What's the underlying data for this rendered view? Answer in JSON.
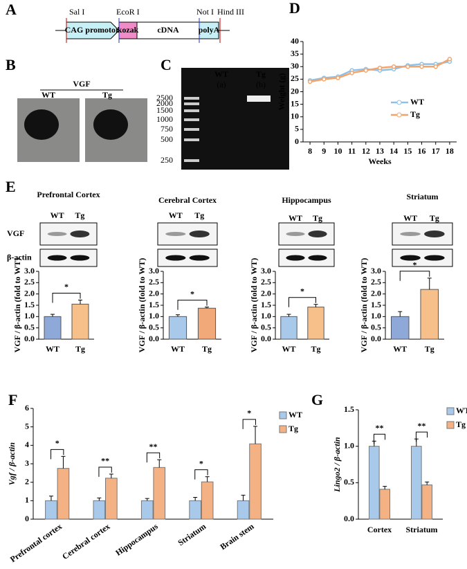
{
  "panel_labels": [
    "A",
    "B",
    "C",
    "D",
    "E",
    "F",
    "G"
  ],
  "construct": {
    "sites": [
      "Sal I",
      "EcoR I",
      "Not I",
      "Hind III"
    ],
    "elements": [
      "CAG promotor",
      "kozak",
      "cDNA",
      "polyA"
    ]
  },
  "photos": {
    "title": "VGF",
    "labels": [
      "WT",
      "Tg"
    ]
  },
  "gel": {
    "lanes": [
      "WT",
      "Tg"
    ],
    "lane_ids": [
      "(a)",
      "(b)"
    ],
    "ladder": [
      2500,
      2000,
      1500,
      1000,
      750,
      500,
      250
    ]
  },
  "chart_data": [
    {
      "type": "line",
      "xlabel": "Weeks",
      "ylabel": "Weight (g)",
      "x": [
        8,
        9,
        10,
        11,
        12,
        13,
        14,
        15,
        16,
        17,
        18
      ],
      "xlim": [
        7.5,
        18.5
      ],
      "xticks": [
        8,
        9,
        10,
        11,
        12,
        13,
        14,
        15,
        16,
        17,
        18
      ],
      "ylim": [
        0,
        40
      ],
      "yticks": [
        0,
        5,
        10,
        15,
        20,
        25,
        30,
        35,
        40
      ],
      "legend": "right",
      "series": [
        {
          "name": "WT",
          "color": "#8fc1e6",
          "values": [
            24.5,
            25.5,
            26,
            28.5,
            29,
            28.5,
            29,
            30.5,
            31,
            31,
            32
          ]
        },
        {
          "name": "Tg",
          "color": "#f4a46a",
          "values": [
            24,
            25,
            25.5,
            27.5,
            28.5,
            29.5,
            30,
            30,
            30,
            30,
            33
          ]
        }
      ]
    },
    {
      "type": "bar",
      "title": "Prefrontal Cortex",
      "lanes": [
        "WT",
        "Tg"
      ],
      "blot_rows": [
        "VGF",
        "β-actin"
      ],
      "ylabel": "VGF / β-actin (fold to WT)",
      "categories": [
        "WT",
        "Tg"
      ],
      "values": [
        1,
        1.55
      ],
      "errors": [
        0.1,
        0.18
      ],
      "colors": [
        "#8ea9d8",
        "#f7c08a"
      ],
      "significance": "*",
      "ylim": [
        0,
        3
      ],
      "yticks": [
        {
          "value": 0,
          "label": "0.0"
        },
        0.5,
        {
          "value": 1,
          "label": "1.0"
        },
        1.5,
        {
          "value": 2,
          "label": "2.0"
        },
        2.5,
        {
          "value": 3,
          "label": "3.0"
        }
      ]
    },
    {
      "type": "bar",
      "title": "Cerebral Cortex",
      "lanes": [
        "WT",
        "Tg"
      ],
      "ylabel": "VGF / β-actin (fold to WT)",
      "categories": [
        "WT",
        "Tg"
      ],
      "values": [
        1,
        1.37
      ],
      "errors": [
        0.08,
        0.05
      ],
      "colors": [
        "#a9c9ea",
        "#f2a97a"
      ],
      "significance": "*",
      "ylim": [
        0,
        3
      ],
      "yticks": [
        {
          "value": 0,
          "label": "0.0"
        },
        0.5,
        {
          "value": 1,
          "label": "1.0"
        },
        1.5,
        {
          "value": 2,
          "label": "2.0"
        },
        2.5,
        {
          "value": 3,
          "label": "3.0"
        }
      ]
    },
    {
      "type": "bar",
      "title": "Hippocampus",
      "lanes": [
        "WT",
        "Tg"
      ],
      "ylabel": "VGF / β-actin (fold to WT)",
      "categories": [
        "WT",
        "Tg"
      ],
      "values": [
        1,
        1.42
      ],
      "errors": [
        0.1,
        0.12
      ],
      "colors": [
        "#a9c9ea",
        "#f7c08a"
      ],
      "significance": "*",
      "ylim": [
        0,
        3
      ],
      "yticks": [
        {
          "value": 0,
          "label": "0.0"
        },
        0.5,
        {
          "value": 1,
          "label": "1.0"
        },
        1.5,
        {
          "value": 2,
          "label": "2.0"
        },
        2.5,
        {
          "value": 3,
          "label": "3.0"
        }
      ]
    },
    {
      "type": "bar",
      "title": "Striatum",
      "lanes": [
        "WT",
        "Tg"
      ],
      "ylabel": "VGF / β-actin (fold to WT)",
      "categories": [
        "WT",
        "Tg"
      ],
      "values": [
        1,
        2.2
      ],
      "errors": [
        0.22,
        0.5
      ],
      "colors": [
        "#8ea9d8",
        "#f7c08a"
      ],
      "significance": "*",
      "ylim": [
        0,
        3
      ],
      "yticks": [
        {
          "value": 0,
          "label": "0.0"
        },
        0.5,
        {
          "value": 1,
          "label": "1.0"
        },
        1.5,
        {
          "value": 2,
          "label": "2.0"
        },
        2.5,
        {
          "value": 3,
          "label": "3.0"
        }
      ]
    },
    {
      "type": "grouped_bar",
      "ylabel": "Vgf / β-actin",
      "categories": [
        "Prefrontal cortex",
        "Cerebral cortex",
        "Hippocampus",
        "Striatum",
        "Brain stem"
      ],
      "significance": [
        "*",
        "**",
        "**",
        "*",
        "*"
      ],
      "ylim": [
        0,
        6
      ],
      "yticks": [
        0,
        1,
        2,
        3,
        4,
        5,
        6
      ],
      "legend": "right",
      "series": [
        {
          "name": "WT",
          "color": "#a9c9ea",
          "values": [
            1,
            1,
            1,
            1,
            1
          ],
          "errors": [
            0.25,
            0.15,
            0.12,
            0.18,
            0.3
          ]
        },
        {
          "name": "Tg",
          "color": "#f4b183",
          "values": [
            2.75,
            2.22,
            2.8,
            2.02,
            4.08
          ],
          "errors": [
            0.65,
            0.22,
            0.42,
            0.28,
            0.95
          ]
        }
      ]
    },
    {
      "type": "grouped_bar",
      "ylabel": "Lingo2 / β-actin",
      "categories": [
        "Cortex",
        "Striatum"
      ],
      "significance": [
        "**",
        "**"
      ],
      "ylim": [
        0,
        1.5
      ],
      "yticks": [
        {
          "value": 0,
          "label": "0.0"
        },
        0.5,
        {
          "value": 1,
          "label": "1.0"
        },
        1.5
      ],
      "legend": "right",
      "series": [
        {
          "name": "WT",
          "color": "#a9c9ea",
          "values": [
            1,
            1
          ],
          "errors": [
            0.07,
            0.1
          ]
        },
        {
          "name": "Tg",
          "color": "#f4b183",
          "values": [
            0.41,
            0.47
          ],
          "errors": [
            0.04,
            0.04
          ]
        }
      ]
    }
  ]
}
